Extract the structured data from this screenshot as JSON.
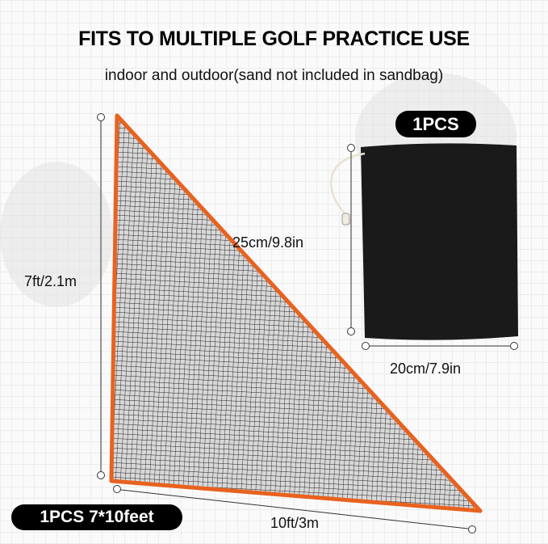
{
  "headline": "FITS TO MULTIPLE GOLF PRACTICE USE",
  "subheadline": "indoor and outdoor(sand not included in sandbag)",
  "bag": {
    "badge": "1PCS",
    "height_label": "25cm/9.8in",
    "width_label": "20cm/7.9in",
    "color": "#1a1a1a"
  },
  "net": {
    "badge": "1PCS 7*10feet",
    "height_label": "7ft/2.1m",
    "width_label": "10ft/3m",
    "border_color": "#e8621f"
  }
}
